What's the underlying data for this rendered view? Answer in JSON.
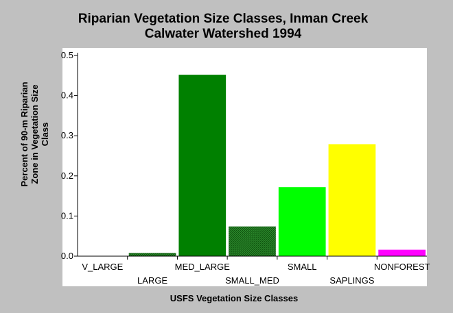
{
  "chart_data": {
    "type": "bar",
    "title": [
      "Riparian Vegetation Size Classes, Inman Creek",
      "Calwater Watershed 1994"
    ],
    "xlabel": "USFS Vegetation Size Classes",
    "ylabel": [
      "Percent of 90-m Riparian",
      "Zone in Vegetation Size",
      "Class"
    ],
    "categories": [
      "V_LARGE",
      "LARGE",
      "MED_LARGE",
      "SMALL_MED",
      "SMALL",
      "SAPLINGS",
      "NONFOREST"
    ],
    "values": [
      0.0,
      0.008,
      0.452,
      0.074,
      0.172,
      0.279,
      0.016
    ],
    "colors": [
      "#006400",
      "#0a5c0a",
      "#008000",
      "#117a11",
      "#00ff00",
      "#ffff00",
      "#ff00ff"
    ],
    "hatched": [
      false,
      true,
      false,
      true,
      false,
      false,
      false
    ],
    "yticks": [
      "0.0",
      "0.1",
      "0.2",
      "0.3",
      "0.4",
      "0.5"
    ],
    "ylim": [
      0,
      0.5
    ],
    "grid": false,
    "legend": "none"
  }
}
